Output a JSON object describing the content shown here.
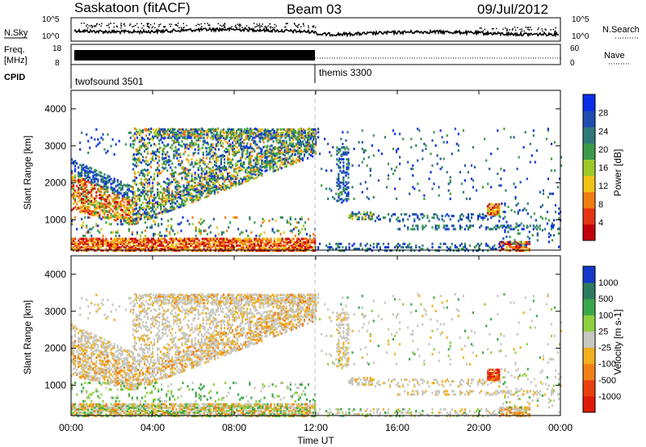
{
  "header": {
    "site": "Saskatoon (fitACF)",
    "beam": "Beam 03",
    "date": "09/Jul/2012"
  },
  "noise_panel": {
    "left_label": "N.Sky",
    "right_label": "N.Search",
    "left_ticks": [
      "10^5",
      "10^0"
    ],
    "right_ticks": [
      "10^5",
      "10^0"
    ]
  },
  "freq_panel": {
    "left_label_1": "Freq.",
    "left_label_2": "[MHz]",
    "left_ticks": [
      "18",
      "8"
    ],
    "right_label": "Nave",
    "right_ticks": [
      "60",
      "0"
    ]
  },
  "cpid_panel": {
    "label": "CPID",
    "modes": [
      "twofsound 3501",
      "themis 3300"
    ]
  },
  "power_panel": {
    "ylabel": "Slant Range [km]",
    "yticks": [
      "4000",
      "3000",
      "2000",
      "1000"
    ],
    "colorbar_label": "Power [dB]",
    "colorbar_ticks": [
      "28",
      "24",
      "20",
      "16",
      "12",
      "8",
      "4"
    ],
    "colors": [
      "#0a2ee8",
      "#1e4fb0",
      "#2f7a78",
      "#3a9a4a",
      "#9ecb2a",
      "#f2c11a",
      "#f07d12",
      "#e33414",
      "#c4000c"
    ]
  },
  "velocity_panel": {
    "ylabel": "Slant Range [km]",
    "yticks": [
      "4000",
      "3000",
      "2000",
      "1000"
    ],
    "colorbar_label": "Velocity [m s-1]",
    "colorbar_ticks": [
      "1000",
      "500",
      "100",
      "25",
      "-25",
      "-100",
      "-500",
      "-1000"
    ],
    "colors": [
      "#1438c8",
      "#2c7a60",
      "#3aa84a",
      "#8fd040",
      "#c8c8c0",
      "#f0b020",
      "#f08018",
      "#e84010",
      "#e01a08"
    ]
  },
  "xaxis": {
    "label": "Time UT",
    "ticks": [
      "00:00",
      "04:00",
      "08:00",
      "12:00",
      "16:00",
      "20:00",
      "00:00"
    ]
  },
  "chart_data": {
    "type": "heatmap",
    "title": "Saskatoon (fitACF) Beam 03 09/Jul/2012",
    "xlabel": "Time UT",
    "ylabel": "Slant Range [km]",
    "xlim_hours": [
      0,
      24
    ],
    "ylim_km": [
      180,
      4500
    ],
    "regions": [
      {
        "panel": "power",
        "t0": 0.0,
        "t1": 2.8,
        "r0": 1300,
        "r1": 2300,
        "level": "high"
      },
      {
        "panel": "power",
        "t0": 2.8,
        "t1": 12.0,
        "r0": 900,
        "r1": 3500,
        "level": "medium"
      },
      {
        "panel": "power",
        "t0": 0.0,
        "t1": 12.0,
        "r0": 200,
        "r1": 500,
        "level": "high"
      },
      {
        "panel": "power",
        "t0": 20.5,
        "t1": 21.0,
        "r0": 1200,
        "r1": 1450,
        "level": "high"
      },
      {
        "panel": "velocity",
        "t0": 20.5,
        "t1": 21.0,
        "r0": 1200,
        "r1": 1450,
        "level": "-1000"
      }
    ]
  }
}
